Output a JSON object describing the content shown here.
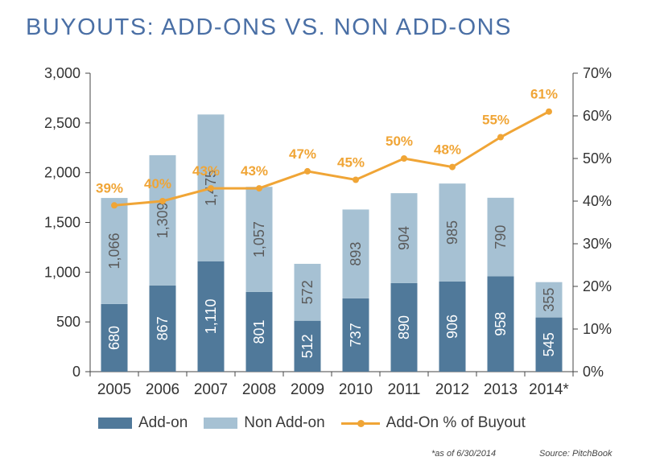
{
  "chart_data": {
    "type": "bar",
    "stacked": true,
    "title": "BUYOUTS: ADD-ONS VS. NON ADD-ONS",
    "categories": [
      "2005",
      "2006",
      "2007",
      "2008",
      "2009",
      "2010",
      "2011",
      "2012",
      "2013",
      "2014*"
    ],
    "series": [
      {
        "name": "Add-on",
        "type": "bar",
        "axis": "left",
        "color": "#50799a",
        "values": [
          680,
          867,
          1110,
          801,
          512,
          737,
          890,
          906,
          958,
          545
        ],
        "labels": [
          "680",
          "867",
          "1,110",
          "801",
          "512",
          "737",
          "890",
          "906",
          "958",
          "545"
        ]
      },
      {
        "name": "Non Add-on",
        "type": "bar",
        "axis": "left",
        "color": "#a6c1d3",
        "values": [
          1066,
          1309,
          1475,
          1057,
          572,
          893,
          904,
          985,
          790,
          355
        ],
        "labels": [
          "1,066",
          "1,309",
          "1,475",
          "1,057",
          "572",
          "893",
          "904",
          "985",
          "790",
          "355"
        ]
      },
      {
        "name": "Add-On % of Buyout",
        "type": "line",
        "axis": "right",
        "color": "#f0a536",
        "values": [
          39,
          40,
          43,
          43,
          47,
          45,
          50,
          48,
          55,
          61
        ],
        "labels": [
          "39%",
          "40%",
          "43%",
          "43%",
          "47%",
          "45%",
          "50%",
          "48%",
          "55%",
          "61%"
        ]
      }
    ],
    "y_left": {
      "min": 0,
      "max": 3000,
      "ticks": [
        "0",
        "500",
        "1,000",
        "1,500",
        "2,000",
        "2,500",
        "3,000"
      ]
    },
    "y_right": {
      "min": 0,
      "max": 70,
      "ticks": [
        "0%",
        "10%",
        "20%",
        "30%",
        "40%",
        "50%",
        "60%",
        "70%"
      ]
    },
    "grid": false,
    "legend_position": "bottom",
    "footnote": "*as of 6/30/2014",
    "source": "Source: PitchBook"
  }
}
